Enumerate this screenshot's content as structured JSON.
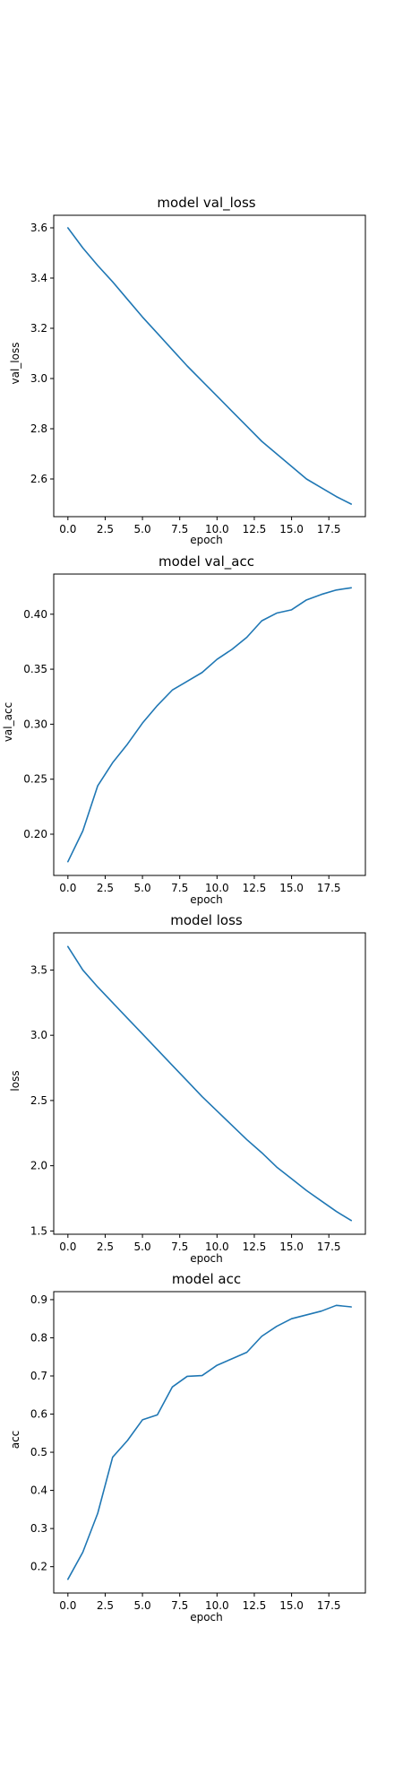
{
  "figure": {
    "background": "#ffffff",
    "line_color": "#1f77b4"
  },
  "chart_data": [
    {
      "type": "line",
      "title": "model val_loss",
      "xlabel": "epoch",
      "ylabel": "val_loss",
      "x": [
        0,
        1,
        2,
        3,
        4,
        5,
        6,
        7,
        8,
        9,
        10,
        11,
        12,
        13,
        14,
        15,
        16,
        17,
        18,
        19
      ],
      "series": [
        {
          "values": [
            3.6,
            3.52,
            3.45,
            3.385,
            3.315,
            3.245,
            3.18,
            3.115,
            3.05,
            2.99,
            2.93,
            2.87,
            2.81,
            2.75,
            2.7,
            2.65,
            2.6,
            2.565,
            2.53,
            2.5
          ]
        }
      ],
      "xlim": [
        -0.95,
        19.95
      ],
      "ylim": [
        2.45,
        3.65
      ],
      "xticks": [
        0,
        2.5,
        5,
        7.5,
        10,
        12.5,
        15,
        17.5
      ],
      "xticklabels": [
        "0.0",
        "2.5",
        "5.0",
        "7.5",
        "10.0",
        "12.5",
        "15.0",
        "17.5"
      ],
      "yticks": [
        2.6,
        2.8,
        3.0,
        3.2,
        3.4,
        3.6
      ],
      "yticklabels": [
        "2.6",
        "2.8",
        "3.0",
        "3.2",
        "3.4",
        "3.6"
      ],
      "grid": false,
      "legend": "none"
    },
    {
      "type": "line",
      "title": "model val_acc",
      "xlabel": "epoch",
      "ylabel": "val_acc",
      "x": [
        0,
        1,
        2,
        3,
        4,
        5,
        6,
        7,
        8,
        9,
        10,
        11,
        12,
        13,
        14,
        15,
        16,
        17,
        18,
        19
      ],
      "series": [
        {
          "values": [
            0.175,
            0.203,
            0.244,
            0.265,
            0.282,
            0.301,
            0.317,
            0.331,
            0.339,
            0.347,
            0.359,
            0.368,
            0.379,
            0.394,
            0.401,
            0.404,
            0.413,
            0.418,
            0.422,
            0.424
          ]
        }
      ],
      "xlim": [
        -0.95,
        19.95
      ],
      "ylim": [
        0.1625,
        0.4365
      ],
      "xticks": [
        0,
        2.5,
        5,
        7.5,
        10,
        12.5,
        15,
        17.5
      ],
      "xticklabels": [
        "0.0",
        "2.5",
        "5.0",
        "7.5",
        "10.0",
        "12.5",
        "15.0",
        "17.5"
      ],
      "yticks": [
        0.2,
        0.25,
        0.3,
        0.35,
        0.4
      ],
      "yticklabels": [
        "0.20",
        "0.25",
        "0.30",
        "0.35",
        "0.40"
      ],
      "grid": false,
      "legend": "none"
    },
    {
      "type": "line",
      "title": "model loss",
      "xlabel": "epoch",
      "ylabel": "loss",
      "x": [
        0,
        1,
        2,
        3,
        4,
        5,
        6,
        7,
        8,
        9,
        10,
        11,
        12,
        13,
        14,
        15,
        16,
        17,
        18,
        19
      ],
      "series": [
        {
          "values": [
            3.68,
            3.5,
            3.37,
            3.25,
            3.13,
            3.01,
            2.89,
            2.77,
            2.65,
            2.53,
            2.42,
            2.31,
            2.2,
            2.1,
            1.99,
            1.9,
            1.81,
            1.73,
            1.65,
            1.58
          ]
        }
      ],
      "xlim": [
        -0.95,
        19.95
      ],
      "ylim": [
        1.475,
        3.785
      ],
      "xticks": [
        0,
        2.5,
        5,
        7.5,
        10,
        12.5,
        15,
        17.5
      ],
      "xticklabels": [
        "0.0",
        "2.5",
        "5.0",
        "7.5",
        "10.0",
        "12.5",
        "15.0",
        "17.5"
      ],
      "yticks": [
        1.5,
        2.0,
        2.5,
        3.0,
        3.5
      ],
      "yticklabels": [
        "1.5",
        "2.0",
        "2.5",
        "3.0",
        "3.5"
      ],
      "grid": false,
      "legend": "none"
    },
    {
      "type": "line",
      "title": "model acc",
      "xlabel": "epoch",
      "ylabel": "acc",
      "x": [
        0,
        1,
        2,
        3,
        4,
        5,
        6,
        7,
        8,
        9,
        10,
        11,
        12,
        13,
        14,
        15,
        16,
        17,
        18,
        19
      ],
      "series": [
        {
          "values": [
            0.167,
            0.238,
            0.34,
            0.487,
            0.531,
            0.585,
            0.598,
            0.671,
            0.699,
            0.701,
            0.728,
            0.745,
            0.762,
            0.804,
            0.83,
            0.85,
            0.86,
            0.87,
            0.885,
            0.881
          ]
        }
      ],
      "xlim": [
        -0.95,
        19.95
      ],
      "ylim": [
        0.131,
        0.921
      ],
      "xticks": [
        0,
        2.5,
        5,
        7.5,
        10,
        12.5,
        15,
        17.5
      ],
      "xticklabels": [
        "0.0",
        "2.5",
        "5.0",
        "7.5",
        "10.0",
        "12.5",
        "15.0",
        "17.5"
      ],
      "yticks": [
        0.2,
        0.3,
        0.4,
        0.5,
        0.6,
        0.7,
        0.8,
        0.9
      ],
      "yticklabels": [
        "0.2",
        "0.3",
        "0.4",
        "0.5",
        "0.6",
        "0.7",
        "0.8",
        "0.9"
      ],
      "grid": false,
      "legend": "none"
    }
  ]
}
